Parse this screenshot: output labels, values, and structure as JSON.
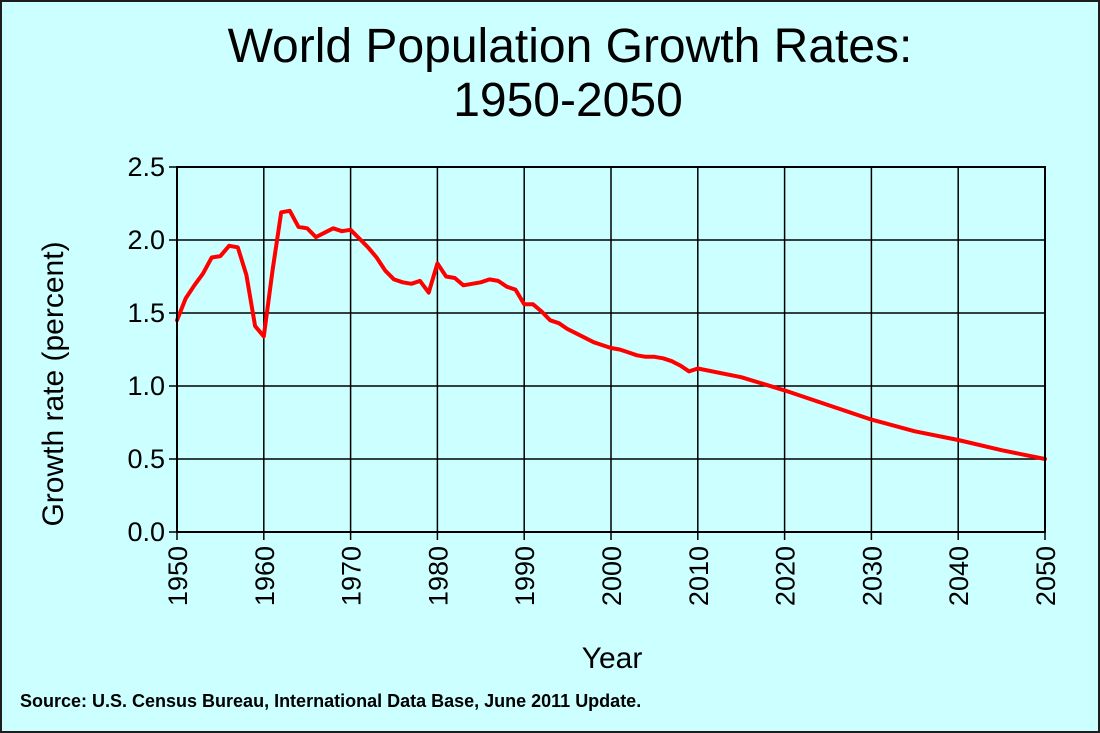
{
  "chart_data": {
    "type": "line",
    "title_line1": "World Population Growth Rates:",
    "title_line2": "1950-2050",
    "xlabel": "Year",
    "ylabel": "Growth rate  (percent)",
    "source": "Source: U.S. Census Bureau, International Data Base, June 2011 Update.",
    "xlim": [
      1950,
      2050
    ],
    "ylim": [
      0.0,
      2.5
    ],
    "x_ticks": [
      "1950",
      "1960",
      "1970",
      "1980",
      "1990",
      "2000",
      "2010",
      "2020",
      "2030",
      "2040",
      "2050"
    ],
    "y_ticks": [
      "0.0",
      "0.5",
      "1.0",
      "1.5",
      "2.0",
      "2.5"
    ],
    "grid": true,
    "line_color": "#ff0000",
    "series": [
      {
        "name": "Growth rate",
        "x": [
          1950,
          1951,
          1952,
          1953,
          1954,
          1955,
          1956,
          1957,
          1958,
          1959,
          1960,
          1961,
          1962,
          1963,
          1964,
          1965,
          1966,
          1967,
          1968,
          1969,
          1970,
          1971,
          1972,
          1973,
          1974,
          1975,
          1976,
          1977,
          1978,
          1979,
          1980,
          1981,
          1982,
          1983,
          1984,
          1985,
          1986,
          1987,
          1988,
          1989,
          1990,
          1991,
          1992,
          1993,
          1994,
          1995,
          1996,
          1997,
          1998,
          1999,
          2000,
          2001,
          2002,
          2003,
          2004,
          2005,
          2006,
          2007,
          2008,
          2009,
          2010,
          2015,
          2020,
          2025,
          2030,
          2035,
          2040,
          2045,
          2050
        ],
        "values": [
          1.45,
          1.6,
          1.69,
          1.77,
          1.88,
          1.89,
          1.96,
          1.95,
          1.76,
          1.41,
          1.34,
          1.79,
          2.19,
          2.2,
          2.09,
          2.08,
          2.02,
          2.05,
          2.08,
          2.06,
          2.07,
          2.01,
          1.95,
          1.88,
          1.79,
          1.73,
          1.71,
          1.7,
          1.72,
          1.64,
          1.84,
          1.75,
          1.74,
          1.69,
          1.7,
          1.71,
          1.73,
          1.72,
          1.68,
          1.66,
          1.56,
          1.56,
          1.51,
          1.45,
          1.43,
          1.39,
          1.36,
          1.33,
          1.3,
          1.28,
          1.26,
          1.25,
          1.23,
          1.21,
          1.2,
          1.2,
          1.19,
          1.17,
          1.14,
          1.1,
          1.12,
          1.06,
          0.97,
          0.87,
          0.77,
          0.69,
          0.63,
          0.56,
          0.5
        ]
      }
    ]
  }
}
